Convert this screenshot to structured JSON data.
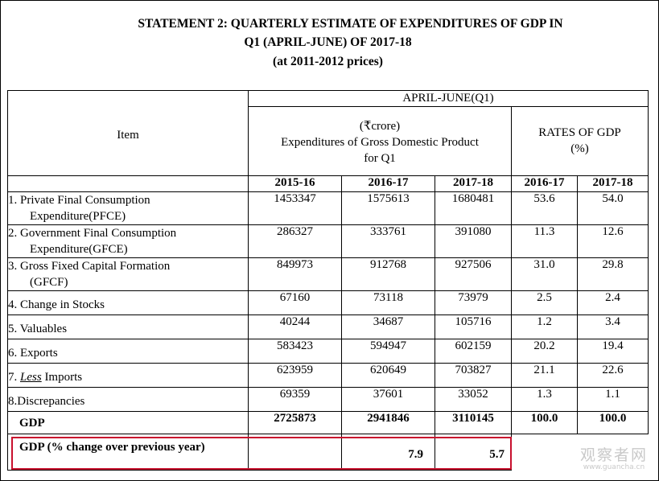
{
  "title": {
    "line1": "STATEMENT 2: QUARTERLY ESTIMATE OF EXPENDITURES OF GDP IN",
    "line2": "Q1 (APRIL-JUNE) OF 2017-18",
    "line3": "(at 2011-2012 prices)"
  },
  "header": {
    "item": "Item",
    "period": "APRIL-JUNE(Q1)",
    "expend_line1": "(₹crore)",
    "expend_line2": "Expenditures of Gross Domestic Product",
    "expend_line3": "for Q1",
    "rates_line1": "RATES OF GDP",
    "rates_line2": "(%)",
    "years": [
      "2015-16",
      "2016-17",
      "2017-18",
      "2016-17",
      "2017-18"
    ]
  },
  "rows": [
    {
      "label1": "1. Private Final Consumption",
      "label2": "Expenditure(PFCE)",
      "v": [
        "1453347",
        "1575613",
        "1680481",
        "53.6",
        "54.0"
      ]
    },
    {
      "label1": "2. Government Final Consumption",
      "label2": "Expenditure(GFCE)",
      "v": [
        "286327",
        "333761",
        "391080",
        "11.3",
        "12.6"
      ]
    },
    {
      "label1": "3. Gross Fixed Capital Formation",
      "label2": "(GFCF)",
      "v": [
        "849973",
        "912768",
        "927506",
        "31.0",
        "29.8"
      ]
    },
    {
      "label1": "4. Change in Stocks",
      "v": [
        "67160",
        "73118",
        "73979",
        "2.5",
        "2.4"
      ]
    },
    {
      "label1": "5. Valuables",
      "v": [
        "40244",
        "34687",
        "105716",
        "1.2",
        "3.4"
      ]
    },
    {
      "label1": "6. Exports",
      "v": [
        "583423",
        "594947",
        "602159",
        "20.2",
        "19.4"
      ]
    },
    {
      "label_pre": "7. ",
      "label_less": "Less",
      "label_post": " Imports",
      "v": [
        "623959",
        "620649",
        "703827",
        "21.1",
        "22.6"
      ]
    },
    {
      "label1": "8.Discrepancies",
      "v": [
        "69359",
        "37601",
        "33052",
        "1.3",
        "1.1"
      ]
    }
  ],
  "gdp_row": {
    "label": "GDP",
    "v": [
      "2725873",
      "2941846",
      "3110145",
      "100.0",
      "100.0"
    ]
  },
  "change_row": {
    "label": "GDP (% change over previous year)",
    "v": [
      "",
      "7.9",
      "5.7"
    ]
  },
  "watermark": {
    "line1": "观察者网",
    "line2": "www.guancha.cn"
  },
  "colors": {
    "highlight": "#c8102e",
    "watermark": "#c9c9c9"
  }
}
